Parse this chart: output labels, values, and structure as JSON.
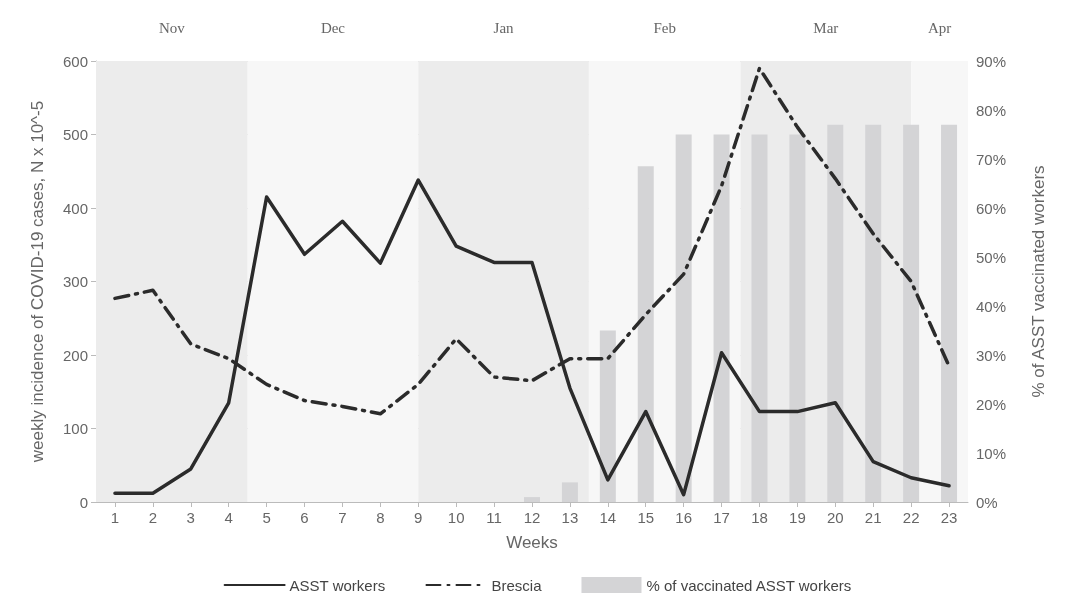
{
  "chart_data": {
    "type": "line",
    "xlabel": "Weeks",
    "ylabel": "weekly incidence of COVID-19 cases, N x 10^-5",
    "y2label": "% of ASST vaccinated workers",
    "x": [
      1,
      2,
      3,
      4,
      5,
      6,
      7,
      8,
      9,
      10,
      11,
      12,
      13,
      14,
      15,
      16,
      17,
      18,
      19,
      20,
      21,
      22,
      23
    ],
    "xlim": [
      0.5,
      23.5
    ],
    "xticks": [
      1,
      2,
      3,
      4,
      5,
      6,
      7,
      8,
      9,
      10,
      11,
      12,
      13,
      14,
      15,
      16,
      17,
      18,
      19,
      20,
      21,
      22,
      23
    ],
    "ylim": [
      0,
      600
    ],
    "yticks": [
      0,
      100,
      200,
      300,
      400,
      500,
      600
    ],
    "y2lim": [
      0,
      90
    ],
    "y2ticks": [
      {
        "value": 0,
        "label": "0%"
      },
      {
        "value": 10,
        "label": "10%"
      },
      {
        "value": 20,
        "label": "20%"
      },
      {
        "value": 30,
        "label": "30%"
      },
      {
        "value": 40,
        "label": "40%"
      },
      {
        "value": 50,
        "label": "50%"
      },
      {
        "value": 60,
        "label": "60%"
      },
      {
        "value": 70,
        "label": "70%"
      },
      {
        "value": 80,
        "label": "80%"
      },
      {
        "value": 90,
        "label": "90%"
      }
    ],
    "grid": "y",
    "legend": "bottom",
    "marker": "none",
    "series": [
      {
        "name": "ASST workers",
        "line_style": "solid",
        "color": "#2b2b2b",
        "values": [
          12,
          12,
          45,
          135,
          415,
          337,
          382,
          325,
          438,
          348,
          326,
          326,
          155,
          30,
          123,
          10,
          203,
          123,
          123,
          135,
          55,
          33,
          22
        ]
      },
      {
        "name": "Brescia",
        "line_style": "dashed",
        "color": "#2b2b2b",
        "values": [
          277,
          288,
          215,
          195,
          160,
          138,
          130,
          120,
          160,
          222,
          170,
          165,
          195,
          195,
          255,
          310,
          430,
          590,
          510,
          440,
          365,
          300,
          185
        ]
      },
      {
        "name": "% of vaccinated ASST workers",
        "type": "bar",
        "axis": "y2",
        "color": "#d4d4d6",
        "values": [
          null,
          null,
          null,
          null,
          null,
          null,
          null,
          null,
          null,
          null,
          null,
          1,
          4,
          35,
          68.5,
          75,
          75,
          75,
          75,
          77,
          77,
          77,
          77
        ]
      }
    ],
    "bands": [
      {
        "axis": "x",
        "from": 0.5,
        "to": 4.5,
        "label": "Nov",
        "color": "#ececec"
      },
      {
        "axis": "x",
        "from": 4.5,
        "to": 9,
        "label": "Dec",
        "color": "#f7f7f7"
      },
      {
        "axis": "x",
        "from": 9,
        "to": 13.5,
        "label": "Jan",
        "color": "#ececec"
      },
      {
        "axis": "x",
        "from": 13.5,
        "to": 17.5,
        "label": "Feb",
        "color": "#f7f7f7"
      },
      {
        "axis": "x",
        "from": 17.5,
        "to": 22,
        "label": "Mar",
        "color": "#ececec"
      },
      {
        "axis": "x",
        "from": 22,
        "to": 23.5,
        "label": "Apr",
        "color": "#f7f7f7"
      }
    ]
  }
}
